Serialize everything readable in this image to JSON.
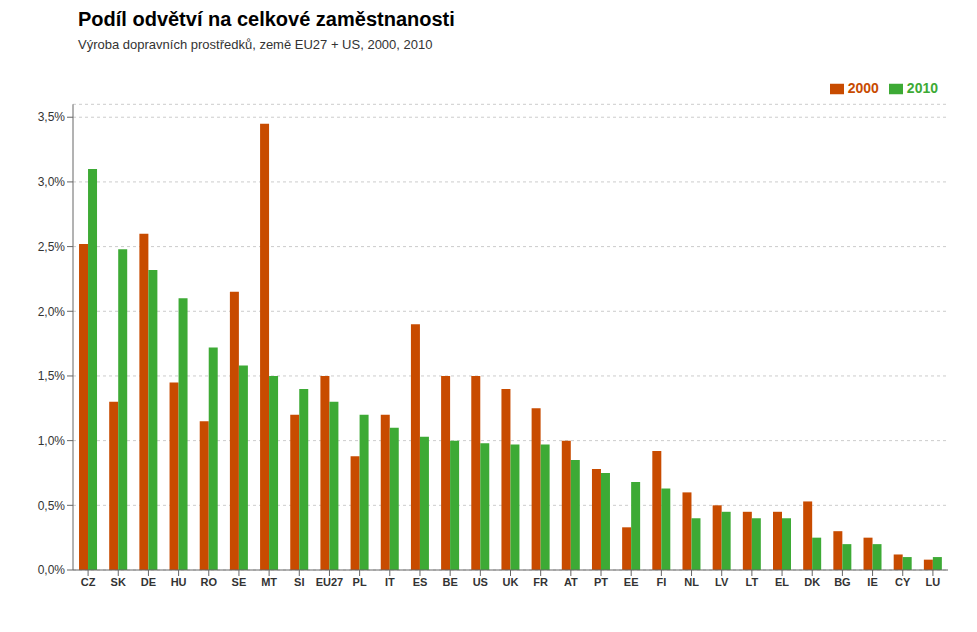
{
  "chart_data": {
    "type": "bar",
    "title": "Podíl odvětví na celkové zaměstnanosti",
    "subtitle": "Výroba dopravních prostředků, země EU27 + US, 2000, 2010",
    "categories": [
      "CZ",
      "SK",
      "DE",
      "HU",
      "RO",
      "SE",
      "MT",
      "SI",
      "EU27",
      "PL",
      "IT",
      "ES",
      "BE",
      "US",
      "UK",
      "FR",
      "AT",
      "PT",
      "EE",
      "FI",
      "NL",
      "LV",
      "LT",
      "EL",
      "DK",
      "BG",
      "IE",
      "CY",
      "LU"
    ],
    "series": [
      {
        "name": "2000",
        "color": "#C84B00",
        "values": [
          0.0252,
          0.013,
          0.026,
          0.0145,
          0.0115,
          0.0215,
          0.0345,
          0.012,
          0.015,
          0.0088,
          0.012,
          0.019,
          0.015,
          0.015,
          0.014,
          0.0125,
          0.01,
          0.0078,
          0.0033,
          0.0092,
          0.006,
          0.005,
          0.0045,
          0.0045,
          0.0053,
          0.003,
          0.0025,
          0.0012,
          0.0008
        ]
      },
      {
        "name": "2010",
        "color": "#3DAA35",
        "values": [
          0.031,
          0.0248,
          0.0232,
          0.021,
          0.0172,
          0.0158,
          0.015,
          0.014,
          0.013,
          0.012,
          0.011,
          0.0103,
          0.01,
          0.0098,
          0.0097,
          0.0097,
          0.0085,
          0.0075,
          0.0068,
          0.0063,
          0.004,
          0.0045,
          0.004,
          0.004,
          0.0025,
          0.002,
          0.002,
          0.001,
          0.001
        ]
      }
    ],
    "ylim": [
      0,
      0.036
    ],
    "yticks": [
      {
        "value": 0.0,
        "label": "0,0%"
      },
      {
        "value": 0.005,
        "label": "0,5%"
      },
      {
        "value": 0.01,
        "label": "1,0%"
      },
      {
        "value": 0.015,
        "label": "1,5%"
      },
      {
        "value": 0.02,
        "label": "2,0%"
      },
      {
        "value": 0.025,
        "label": "2,5%"
      },
      {
        "value": 0.03,
        "label": "3,0%"
      },
      {
        "value": 0.035,
        "label": "3,5%"
      }
    ],
    "grid": true,
    "legend": "upper right"
  }
}
